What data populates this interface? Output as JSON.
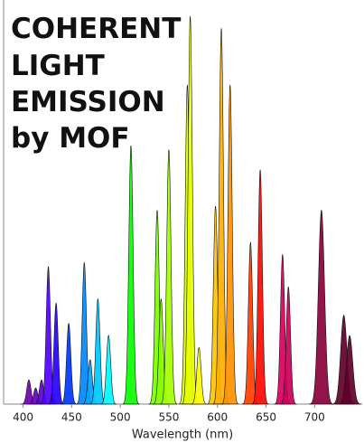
{
  "chart_data": {
    "type": "spectrum",
    "title": [
      "COHERENT",
      "LIGHT",
      "EMISSION",
      "by MOF"
    ],
    "x_label": "Wavelength (nm)",
    "x": [
      406,
      413,
      419,
      426,
      434,
      447,
      463,
      469,
      477,
      488,
      511,
      538,
      542,
      550,
      569,
      572,
      581,
      598,
      604,
      613,
      634,
      644,
      667,
      673,
      707,
      730,
      736
    ],
    "values": [
      6,
      4,
      6,
      34,
      25,
      20,
      35,
      11,
      26,
      17,
      64,
      48,
      26,
      63,
      79,
      96,
      14,
      49,
      93,
      79,
      40,
      58,
      37,
      29,
      48,
      22,
      17
    ],
    "xlim": [
      380,
      748
    ],
    "xticks": [
      400,
      450,
      500,
      550,
      600,
      650,
      700
    ],
    "ylim": [
      0,
      100
    ]
  }
}
